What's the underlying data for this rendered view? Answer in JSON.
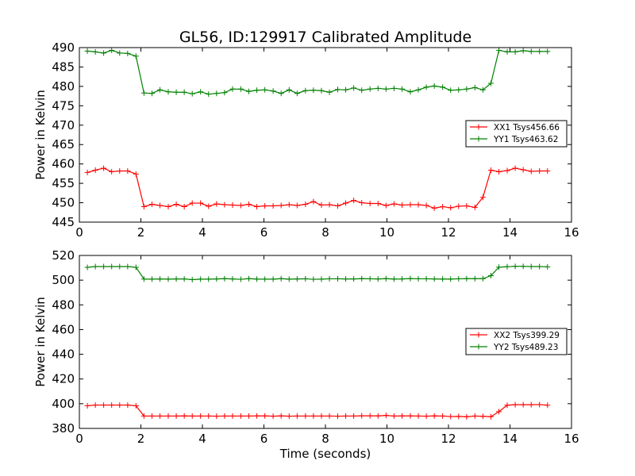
{
  "figure": {
    "title": "GL56, ID:129917 Calibrated Amplitude"
  },
  "chart_data": [
    {
      "type": "line",
      "title": "GL56, ID:129917 Calibrated Amplitude",
      "xlabel": "",
      "ylabel": "Power in Kelvin",
      "xlim": [
        0,
        16
      ],
      "ylim": [
        445,
        490
      ],
      "xticks": [
        0,
        2,
        4,
        6,
        8,
        10,
        12,
        14,
        16
      ],
      "yticks": [
        445,
        450,
        455,
        460,
        465,
        470,
        475,
        480,
        485,
        490
      ],
      "grid": false,
      "legend_position": "right",
      "marker": "plus",
      "x": [
        0.26,
        0.52,
        0.79,
        1.05,
        1.31,
        1.57,
        1.84,
        2.1,
        2.36,
        2.62,
        2.89,
        3.15,
        3.41,
        3.67,
        3.94,
        4.2,
        4.46,
        4.72,
        4.98,
        5.25,
        5.51,
        5.77,
        6.03,
        6.3,
        6.56,
        6.82,
        7.08,
        7.35,
        7.61,
        7.87,
        8.13,
        8.4,
        8.66,
        8.92,
        9.18,
        9.45,
        9.71,
        9.97,
        10.23,
        10.49,
        10.76,
        11.02,
        11.28,
        11.54,
        11.81,
        12.07,
        12.33,
        12.59,
        12.86,
        13.12,
        13.38,
        13.64,
        13.91,
        14.17,
        14.43,
        14.69,
        14.96,
        15.22
      ],
      "series": [
        {
          "name": "XX1 Tsys456.66",
          "color": "#ff0000",
          "values": [
            457.8,
            458.4,
            458.9,
            458.0,
            458.2,
            458.2,
            457.4,
            449.0,
            449.6,
            449.3,
            449.0,
            449.6,
            449.0,
            449.9,
            449.9,
            449.1,
            449.7,
            449.5,
            449.4,
            449.3,
            449.6,
            449.0,
            449.2,
            449.2,
            449.3,
            449.5,
            449.3,
            449.6,
            450.3,
            449.4,
            449.5,
            449.2,
            449.9,
            450.6,
            450.0,
            449.8,
            449.8,
            449.3,
            449.7,
            449.4,
            449.5,
            449.5,
            449.3,
            448.6,
            449.0,
            448.7,
            449.1,
            449.2,
            448.8,
            451.4,
            458.4,
            458.0,
            458.3,
            458.9,
            458.5,
            458.1,
            458.2,
            458.2
          ]
        },
        {
          "name": "YY1 Tsys463.62",
          "color": "#008000",
          "values": [
            489.1,
            488.9,
            488.6,
            489.3,
            488.6,
            488.5,
            487.8,
            478.3,
            478.2,
            479.1,
            478.6,
            478.5,
            478.5,
            478.1,
            478.6,
            478.0,
            478.2,
            478.4,
            479.3,
            479.3,
            478.7,
            479.0,
            479.1,
            478.8,
            478.2,
            479.1,
            478.2,
            478.9,
            479.0,
            478.9,
            478.5,
            479.2,
            479.1,
            479.6,
            479.0,
            479.3,
            479.5,
            479.3,
            479.5,
            479.3,
            478.6,
            479.1,
            479.8,
            480.1,
            479.8,
            479.0,
            479.1,
            479.3,
            479.7,
            479.1,
            480.8,
            489.3,
            488.9,
            488.9,
            489.2,
            489.0,
            489.0,
            489.0
          ]
        }
      ]
    },
    {
      "type": "line",
      "title": "",
      "xlabel": "Time (seconds)",
      "ylabel": "Power in Kelvin",
      "xlim": [
        0,
        16
      ],
      "ylim": [
        380,
        520
      ],
      "xticks": [
        0,
        2,
        4,
        6,
        8,
        10,
        12,
        14,
        16
      ],
      "yticks": [
        380,
        400,
        420,
        440,
        460,
        480,
        500,
        520
      ],
      "grid": false,
      "legend_position": "right",
      "marker": "plus",
      "x": [
        0.26,
        0.52,
        0.79,
        1.05,
        1.31,
        1.57,
        1.84,
        2.1,
        2.36,
        2.62,
        2.89,
        3.15,
        3.41,
        3.67,
        3.94,
        4.2,
        4.46,
        4.72,
        4.98,
        5.25,
        5.51,
        5.77,
        6.03,
        6.3,
        6.56,
        6.82,
        7.08,
        7.35,
        7.61,
        7.87,
        8.13,
        8.4,
        8.66,
        8.92,
        9.18,
        9.45,
        9.71,
        9.97,
        10.23,
        10.49,
        10.76,
        11.02,
        11.28,
        11.54,
        11.81,
        12.07,
        12.33,
        12.59,
        12.86,
        13.12,
        13.38,
        13.64,
        13.91,
        14.17,
        14.43,
        14.69,
        14.96,
        15.22
      ],
      "series": [
        {
          "name": "XX2 Tsys399.29",
          "color": "#ff0000",
          "values": [
            398.3,
            398.9,
            398.9,
            398.9,
            398.9,
            398.9,
            398.3,
            390.0,
            390.0,
            390.0,
            390.0,
            390.0,
            390.1,
            390.0,
            390.0,
            390.0,
            389.9,
            390.0,
            390.0,
            390.0,
            390.0,
            390.1,
            390.1,
            389.9,
            390.1,
            389.9,
            390.0,
            390.0,
            390.0,
            390.0,
            390.0,
            389.9,
            390.0,
            390.0,
            390.2,
            390.2,
            390.1,
            390.5,
            390.0,
            390.1,
            390.1,
            390.0,
            389.9,
            390.1,
            390.0,
            389.6,
            389.7,
            389.4,
            390.0,
            389.8,
            389.5,
            393.6,
            398.8,
            399.2,
            399.2,
            399.2,
            399.3,
            398.8
          ]
        },
        {
          "name": "YY2 Tsys489.23",
          "color": "#008000",
          "values": [
            510.4,
            511.0,
            511.0,
            511.0,
            511.0,
            511.0,
            510.4,
            500.9,
            500.8,
            501.0,
            500.8,
            501.0,
            501.0,
            500.4,
            500.8,
            500.8,
            501.0,
            501.2,
            501.0,
            500.7,
            501.2,
            500.9,
            500.8,
            500.8,
            501.2,
            500.8,
            501.0,
            501.1,
            500.7,
            500.8,
            501.1,
            501.1,
            501.0,
            501.0,
            501.2,
            501.1,
            501.0,
            501.2,
            500.9,
            501.0,
            501.3,
            501.1,
            501.1,
            501.0,
            500.9,
            500.9,
            501.1,
            501.2,
            501.2,
            501.2,
            503.6,
            510.5,
            510.9,
            511.2,
            511.2,
            511.0,
            511.0,
            510.8
          ]
        }
      ]
    }
  ]
}
